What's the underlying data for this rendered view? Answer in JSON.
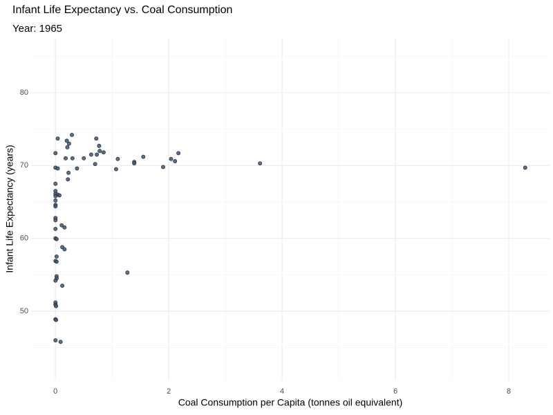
{
  "chart_data": {
    "type": "scatter",
    "title": "Infant Life Expectancy vs. Coal Consumption",
    "subtitle": "Year: 1965",
    "x_label": "Coal Consumption per Capita (tonnes oil equivalent)",
    "y_label": "Infant Life Expectancy (years)",
    "color": "#3f5670",
    "grid": true,
    "xlim": [
      -0.43,
      8.72
    ],
    "ylim": [
      40.5,
      87.5
    ],
    "xticks": [
      0,
      2,
      4,
      6,
      8
    ],
    "yticks": [
      50,
      60,
      70,
      80
    ],
    "minor_xticks": [
      1,
      3,
      5,
      7
    ],
    "minor_yticks": [
      45,
      55,
      65,
      75,
      85
    ],
    "x": [
      0.04,
      0,
      0,
      0.04,
      0,
      0,
      0,
      0.04,
      0.07,
      0,
      0,
      0,
      0,
      0,
      0,
      0,
      0.11,
      0.16,
      0,
      0.02,
      0.12,
      0.16,
      0.02,
      0,
      0.02,
      0.02,
      0.02,
      0,
      0.12,
      0,
      0,
      0.01,
      0,
      0.01,
      0,
      0.09,
      1.27,
      0.2,
      0.21,
      0.24,
      0.29,
      0.18,
      0.3,
      0.23,
      0.22,
      0.38,
      0.5,
      0.63,
      0.72,
      0.77,
      0.73,
      0.78,
      0.85,
      0.7,
      1.1,
      1.07,
      1.39,
      1.39,
      1.55,
      1.9,
      2.04,
      2.11,
      2.17,
      3.61,
      8.29
    ],
    "values": [
      73.7,
      71.7,
      69.7,
      69.6,
      67.5,
      66.5,
      66.1,
      66.0,
      65.9,
      65.8,
      65.2,
      64.6,
      64.4,
      62.8,
      62.5,
      61.3,
      61.8,
      61.5,
      60,
      59.9,
      58.8,
      58.5,
      57.5,
      56.9,
      56.8,
      54.8,
      54.5,
      54.2,
      53.5,
      51.2,
      50.9,
      50.7,
      48.9,
      48.8,
      46,
      45.8,
      55.3,
      73.4,
      72.5,
      73.0,
      74.2,
      71.0,
      71.0,
      69.0,
      68.1,
      69.6,
      71.0,
      71.5,
      73.7,
      72.7,
      71.5,
      72.0,
      71.8,
      70.2,
      70.9,
      69.5,
      70.5,
      70.3,
      71.2,
      69.8,
      70.9,
      70.6,
      71.7,
      70.3,
      69.7
    ]
  }
}
